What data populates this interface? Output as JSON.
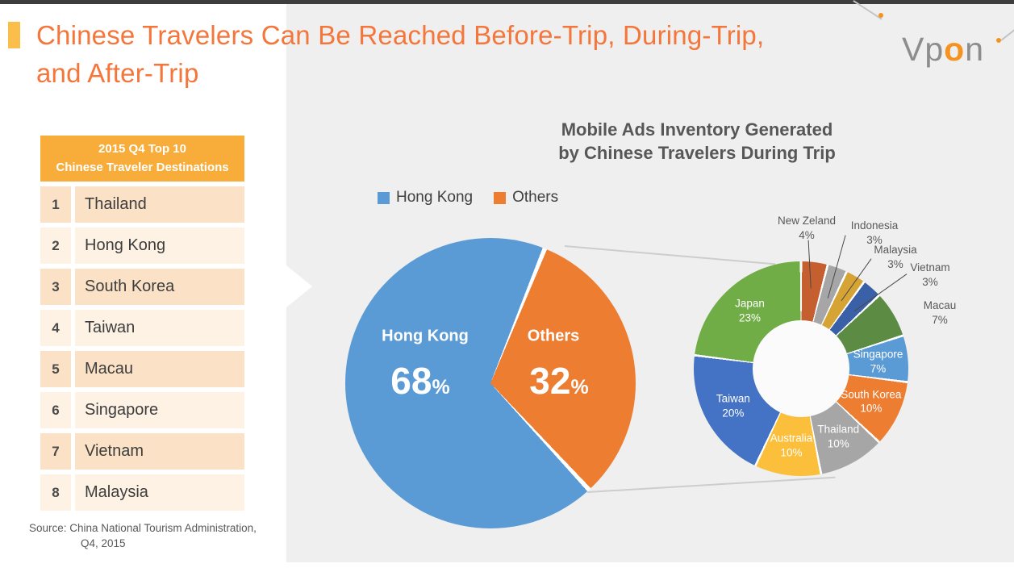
{
  "slide": {
    "title_line1": "Chinese Travelers Can Be Reached Before-Trip, During-Trip,",
    "title_line2": "and After-Trip",
    "brand_orange": "#F4763B",
    "accent_yellow": "#FBBE4B"
  },
  "logo": {
    "prefix": "Vp",
    "accent": "o",
    "suffix": "n"
  },
  "table": {
    "header_line1": "2015 Q4 Top 10",
    "header_line2": "Chinese Traveler Destinations",
    "rows": [
      {
        "rank": "1",
        "name": "Thailand"
      },
      {
        "rank": "2",
        "name": "Hong Kong"
      },
      {
        "rank": "3",
        "name": "South Korea"
      },
      {
        "rank": "4",
        "name": "Taiwan"
      },
      {
        "rank": "5",
        "name": "Macau"
      },
      {
        "rank": "6",
        "name": "Singapore"
      },
      {
        "rank": "7",
        "name": "Vietnam"
      },
      {
        "rank": "8",
        "name": "Malaysia"
      }
    ]
  },
  "source": {
    "line1": "Source: China National Tourism Administration,",
    "line2": "Q4, 2015"
  },
  "chart": {
    "title_line1": "Mobile Ads Inventory Generated",
    "title_line2": "by Chinese Travelers During Trip",
    "legend": [
      {
        "label": "Hong Kong",
        "color": "#5B9BD5"
      },
      {
        "label": "Others",
        "color": "#ED7D31"
      }
    ]
  },
  "misc": {
    "percent_sign": "%"
  },
  "chart_data": [
    {
      "type": "pie",
      "title": "Mobile Ads Inventory Generated by Chinese Travelers During Trip",
      "categories": [
        "Hong Kong",
        "Others"
      ],
      "values": [
        68,
        32
      ],
      "labels": [
        "68%",
        "32%"
      ],
      "value_labels": [
        "68",
        "32"
      ],
      "colors": [
        "#5B9BD5",
        "#ED7D31"
      ],
      "legend_position": "top",
      "start_angle_deg": 22
    },
    {
      "type": "pie",
      "subtype": "donut",
      "categories": [
        "New Zeland",
        "Indonesia",
        "Malaysia",
        "Vietnam",
        "Macau",
        "Singapore",
        "South Korea",
        "Thailand",
        "Australia",
        "Taiwan",
        "Japan"
      ],
      "values": [
        4,
        3,
        3,
        3,
        7,
        7,
        10,
        10,
        10,
        20,
        23
      ],
      "labels": [
        "4%",
        "3%",
        "3%",
        "3%",
        "7%",
        "7%",
        "10%",
        "10%",
        "10%",
        "20%",
        "23%"
      ],
      "colors": [
        "#C55F2F",
        "#A6A6A6",
        "#D6A335",
        "#3A60A8",
        "#5C8B44",
        "#5B9BD5",
        "#ED7D31",
        "#A6A6A6",
        "#FCBF3B",
        "#4472C4",
        "#70AD47"
      ],
      "label_placement": [
        "outside",
        "outside",
        "outside",
        "outside",
        "outside",
        "inside",
        "inside",
        "inside",
        "inside",
        "inside",
        "inside"
      ],
      "start_angle_deg": 0
    }
  ]
}
